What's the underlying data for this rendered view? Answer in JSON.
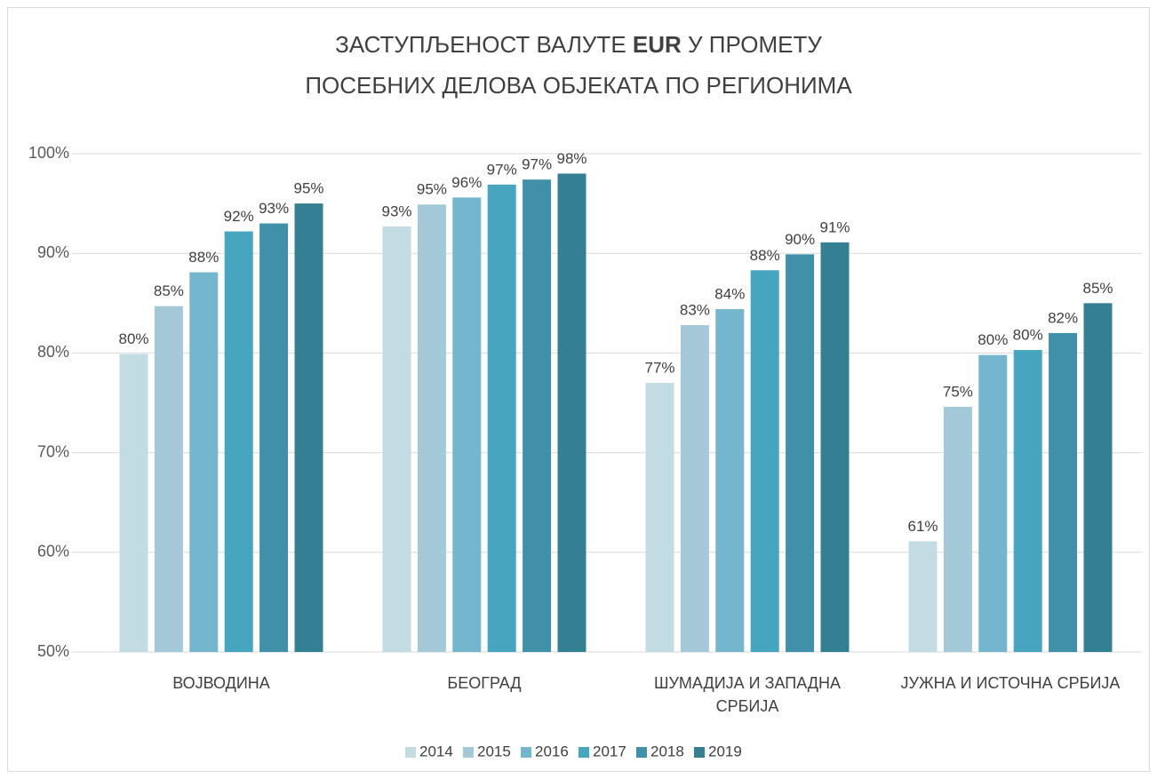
{
  "chart_data": {
    "type": "bar",
    "title": [
      "ЗАСТУПЉЕНОСТ ВАЛУТЕ",
      "EUR",
      "У ПРОМЕТУ",
      "ПОСЕБНИХ ДЕЛОВА ОБЈЕКАТА ПО РЕГИОНИМА"
    ],
    "categories": [
      "ВОЈВОДИНА",
      "БЕОГРАД",
      "ШУМАДИЈА И ЗАПАДНА СРБИЈА",
      "ЈУЖНА И ИСТОЧНА СРБИЈА"
    ],
    "series": [
      {
        "name": "2014",
        "color": "#c3dbe3",
        "values": [
          79.9,
          92.7,
          77.0,
          61.1
        ],
        "value_labels": [
          "80%",
          "93%",
          "77%",
          "61%"
        ]
      },
      {
        "name": "2015",
        "color": "#a3c9d8",
        "values": [
          84.7,
          94.9,
          82.8,
          74.6
        ],
        "value_labels": [
          "85%",
          "95%",
          "83%",
          "75%"
        ]
      },
      {
        "name": "2016",
        "color": "#74b6cd",
        "values": [
          88.1,
          95.6,
          84.4,
          79.8
        ],
        "value_labels": [
          "88%",
          "96%",
          "84%",
          "80%"
        ]
      },
      {
        "name": "2017",
        "color": "#47a5c0",
        "values": [
          92.2,
          96.9,
          88.3,
          80.3
        ],
        "value_labels": [
          "92%",
          "97%",
          "88%",
          "80%"
        ]
      },
      {
        "name": "2018",
        "color": "#3f90a8",
        "values": [
          93.0,
          97.4,
          89.9,
          82.0
        ],
        "value_labels": [
          "93%",
          "97%",
          "90%",
          "82%"
        ]
      },
      {
        "name": "2019",
        "color": "#357f92",
        "values": [
          95.0,
          98.0,
          91.1,
          85.0
        ],
        "value_labels": [
          "95%",
          "98%",
          "91%",
          "85%"
        ]
      }
    ],
    "ylim": [
      50,
      100
    ],
    "yticks": [
      {
        "value": 50,
        "label": "50%"
      },
      {
        "value": 60,
        "label": "60%"
      },
      {
        "value": 70,
        "label": "70%"
      },
      {
        "value": 80,
        "label": "80%"
      },
      {
        "value": 90,
        "label": "90%"
      },
      {
        "value": 100,
        "label": "100%"
      }
    ],
    "grid": true,
    "legend": "bottom"
  }
}
